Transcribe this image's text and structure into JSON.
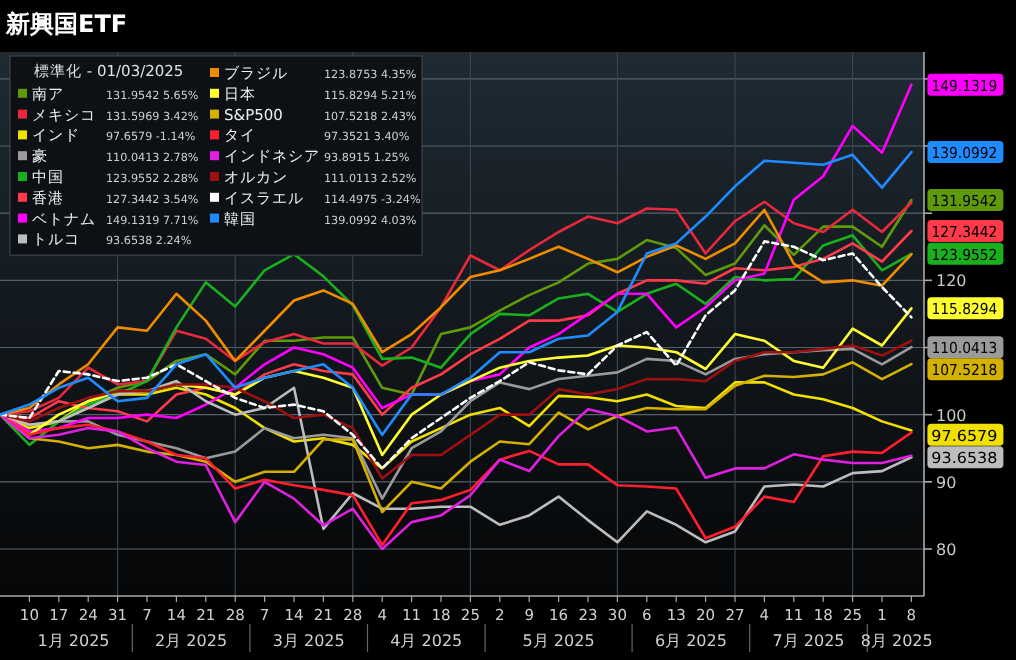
{
  "chart_data": {
    "type": "line",
    "title": "新興国ETF",
    "legend_title": "標準化 - 01/03/2025",
    "legend": "top left",
    "grid": true,
    "x": [
      "2025-01-03",
      "2025-01-10",
      "2025-01-17",
      "2025-01-24",
      "2025-01-31",
      "2025-02-07",
      "2025-02-14",
      "2025-02-21",
      "2025-02-28",
      "2025-03-07",
      "2025-03-14",
      "2025-03-21",
      "2025-03-28",
      "2025-04-04",
      "2025-04-11",
      "2025-04-18",
      "2025-04-25",
      "2025-05-02",
      "2025-05-09",
      "2025-05-16",
      "2025-05-23",
      "2025-05-30",
      "2025-06-06",
      "2025-06-13",
      "2025-06-20",
      "2025-06-27",
      "2025-07-04",
      "2025-07-11",
      "2025-07-18",
      "2025-07-25",
      "2025-08-01",
      "2025-08-08"
    ],
    "xlim": [
      "2025-01-03",
      "2025-08-11"
    ],
    "xticks": [
      {
        "value": "2025-01-10",
        "label": "10"
      },
      {
        "value": "2025-01-17",
        "label": "17"
      },
      {
        "value": "2025-01-24",
        "label": "24"
      },
      {
        "value": "2025-01-31",
        "label": "31"
      },
      {
        "value": "2025-02-07",
        "label": "7"
      },
      {
        "value": "2025-02-14",
        "label": "14"
      },
      {
        "value": "2025-02-21",
        "label": "21"
      },
      {
        "value": "2025-02-28",
        "label": "28"
      },
      {
        "value": "2025-03-07",
        "label": "7"
      },
      {
        "value": "2025-03-14",
        "label": "14"
      },
      {
        "value": "2025-03-21",
        "label": "21"
      },
      {
        "value": "2025-03-28",
        "label": "28"
      },
      {
        "value": "2025-04-04",
        "label": "4"
      },
      {
        "value": "2025-04-11",
        "label": "11"
      },
      {
        "value": "2025-04-18",
        "label": "18"
      },
      {
        "value": "2025-04-25",
        "label": "25"
      },
      {
        "value": "2025-05-02",
        "label": "2"
      },
      {
        "value": "2025-05-09",
        "label": "9"
      },
      {
        "value": "2025-05-16",
        "label": "16"
      },
      {
        "value": "2025-05-23",
        "label": "23"
      },
      {
        "value": "2025-05-30",
        "label": "30"
      },
      {
        "value": "2025-06-06",
        "label": "6"
      },
      {
        "value": "2025-06-13",
        "label": "13"
      },
      {
        "value": "2025-06-20",
        "label": "20"
      },
      {
        "value": "2025-06-27",
        "label": "27"
      },
      {
        "value": "2025-07-04",
        "label": "4"
      },
      {
        "value": "2025-07-11",
        "label": "11"
      },
      {
        "value": "2025-07-18",
        "label": "18"
      },
      {
        "value": "2025-07-25",
        "label": "25"
      },
      {
        "value": "2025-08-01",
        "label": "1"
      },
      {
        "value": "2025-08-08",
        "label": "8"
      }
    ],
    "ylim": [
      73,
      154
    ],
    "yticks": [
      80,
      90,
      100,
      {
        "value": 110,
        "label": null
      },
      120,
      {
        "value": 130,
        "label": null
      },
      {
        "value": 140,
        "label": null
      },
      {
        "value": 150,
        "label": null
      }
    ],
    "series": [
      {
        "name": "南ア",
        "color": "#5f9a0a",
        "values": [
          100,
          98,
          99,
          102,
          104,
          105,
          108,
          109,
          106,
          111,
          111,
          111.5,
          111.5,
          104,
          103,
          112,
          113,
          115.5,
          117.8,
          119.7,
          122.5,
          123.2,
          126,
          124.8,
          120.8,
          122.5,
          128.2,
          123.8,
          128,
          128,
          125,
          131.9542
        ]
      },
      {
        "name": "メキシコ",
        "color": "#e8283c",
        "values": [
          100,
          100.5,
          102.5,
          107,
          104.5,
          105,
          112.5,
          111.3,
          108,
          110.8,
          112,
          110.6,
          110.6,
          107.3,
          110,
          116,
          123.7,
          121.5,
          124.5,
          127.2,
          129.5,
          128.5,
          130.7,
          130.5,
          124,
          128.8,
          131.7,
          128.5,
          127.2,
          130.5,
          127.2,
          131.5969
        ]
      },
      {
        "name": "インド",
        "color": "#f0e000",
        "values": [
          100,
          98,
          99,
          102,
          103,
          103,
          104,
          103,
          101,
          98,
          96,
          96.5,
          95.5,
          92,
          96,
          98,
          100,
          101,
          98.3,
          102.8,
          102.6,
          102,
          103,
          101.3,
          101,
          104.8,
          104.8,
          103,
          102.3,
          101,
          99,
          97.6579
        ]
      },
      {
        "name": "豪",
        "color": "#9a9a9a",
        "values": [
          100,
          98.5,
          99,
          99,
          97,
          96,
          95,
          93.5,
          94.5,
          98,
          96.5,
          97,
          96.5,
          87.5,
          95,
          97.5,
          102,
          104.8,
          103.8,
          105.3,
          105.8,
          106.3,
          108.3,
          108,
          106,
          108.3,
          109,
          109.3,
          109.6,
          109.8,
          107.5,
          110.0413
        ]
      },
      {
        "name": "中国",
        "color": "#19b01e",
        "values": [
          100,
          95.5,
          99,
          101.5,
          103,
          105,
          113,
          119.7,
          116.1,
          121.5,
          123.9,
          120.6,
          116.3,
          108.3,
          108.5,
          107,
          112,
          115,
          114.8,
          117.3,
          118,
          115.3,
          118,
          119.5,
          116.5,
          120.5,
          120,
          120.2,
          125.2,
          126.7,
          121.5,
          123.9552
        ]
      },
      {
        "name": "香港",
        "color": "#ff3a4a",
        "values": [
          100,
          99.5,
          102,
          101,
          100.5,
          99,
          103,
          104,
          103,
          106,
          107.5,
          106.5,
          106,
          100,
          104,
          106,
          109,
          111.3,
          114,
          114,
          114.8,
          118,
          120,
          120,
          119.5,
          121.8,
          121.5,
          122,
          123.2,
          125.5,
          122.8,
          127.3442
        ]
      },
      {
        "name": "ベトナム",
        "color": "#ff00ff",
        "values": [
          100,
          97.5,
          98,
          99.5,
          99.5,
          100,
          99.5,
          101.5,
          104,
          107.5,
          110,
          109,
          107,
          101,
          103,
          103,
          105,
          106,
          110,
          112,
          115,
          118,
          118,
          113,
          116,
          120,
          121,
          132,
          135.5,
          143,
          139,
          149.1319
        ]
      },
      {
        "name": "トルコ",
        "color": "#bdbdbd",
        "values": [
          100,
          98.5,
          99,
          101,
          103,
          103.5,
          105,
          102,
          100,
          101,
          104,
          83,
          88.3,
          86,
          86,
          86.3,
          86.3,
          83.6,
          85,
          87.8,
          84.3,
          81,
          85.6,
          83.6,
          81,
          82.6,
          89.3,
          89.6,
          89.3,
          91.3,
          91.6,
          93.6538
        ]
      },
      {
        "name": "ブラジル",
        "color": "#f08c00",
        "values": [
          100,
          101,
          104.5,
          107.5,
          113,
          112.5,
          118,
          114,
          108,
          112.5,
          117,
          118.5,
          116.5,
          109.3,
          112,
          116,
          120.5,
          121.5,
          123.2,
          125,
          123.2,
          121.2,
          123.5,
          125.2,
          123.2,
          125.5,
          130.5,
          122.5,
          119.7,
          120,
          119.2,
          123.8753
        ]
      },
      {
        "name": "日本",
        "color": "#ffff30",
        "values": [
          100,
          97,
          100,
          102,
          103.5,
          103.5,
          104.5,
          104,
          103,
          105.5,
          106.5,
          105.5,
          104,
          94,
          100,
          103,
          105,
          107,
          108,
          108.5,
          108.8,
          110.3,
          110,
          109.3,
          106.8,
          112,
          111,
          108,
          107,
          112.8,
          110.3,
          115.8294
        ]
      },
      {
        "name": "S&P500",
        "color": "#d4b000",
        "values": [
          100,
          96.5,
          96,
          95,
          95.5,
          94.5,
          94,
          93,
          90,
          91.5,
          91.5,
          96.3,
          96.3,
          85.5,
          90,
          89,
          93,
          96,
          95.6,
          100.3,
          97.8,
          99.8,
          101,
          100.8,
          100.8,
          104.3,
          105.8,
          105.6,
          106,
          107.8,
          105.3,
          107.5218
        ]
      },
      {
        "name": "タイ",
        "color": "#ff1f2f",
        "values": [
          100,
          97,
          98,
          98.5,
          97.5,
          96,
          94,
          93.5,
          89,
          90.3,
          89.5,
          88.8,
          88,
          80.6,
          86.8,
          87.3,
          88.8,
          93.3,
          94.6,
          92.6,
          92.6,
          89.5,
          89.3,
          89,
          81.6,
          83.3,
          87.8,
          87,
          93.8,
          94.5,
          94.3,
          97.3521
        ]
      },
      {
        "name": "インドネシア",
        "color": "#e020e0",
        "values": [
          100,
          96.5,
          97,
          98,
          97.5,
          95,
          93,
          92.5,
          84,
          90,
          87.5,
          83.5,
          86,
          80,
          84,
          85,
          88,
          93.3,
          91.6,
          96.8,
          100.8,
          99.8,
          97.5,
          98.1,
          90.6,
          92,
          92,
          94.1,
          93.3,
          92.8,
          92.8,
          93.8915
        ]
      },
      {
        "name": "オルカン",
        "color": "#9c1010",
        "values": [
          100,
          99,
          101,
          102.5,
          103.5,
          103.5,
          104.5,
          104.5,
          104,
          102,
          99.5,
          100,
          98,
          90.5,
          94,
          94,
          97,
          100,
          100,
          103.8,
          103,
          103.8,
          105.3,
          105.3,
          105,
          108,
          109.3,
          109.3,
          109.8,
          110.3,
          108.8,
          111.0113
        ]
      },
      {
        "name": "イスラエル",
        "color": "#ffffff",
        "line_style": "dashed",
        "values": [
          100,
          99.5,
          106.5,
          106,
          105,
          105.5,
          107.5,
          105,
          102.5,
          101,
          101.5,
          100.5,
          97,
          92,
          96.5,
          99.5,
          102.5,
          105,
          107.8,
          106.6,
          106,
          110.3,
          112.3,
          107.3,
          114.8,
          118.5,
          125.8,
          125,
          123,
          124,
          119,
          114.4975
        ]
      },
      {
        "name": "韓国",
        "color": "#1e8cff",
        "values": [
          100,
          101.5,
          104,
          105.5,
          102,
          102.5,
          107.5,
          109,
          104,
          105.5,
          106.5,
          107.5,
          104,
          97,
          103,
          103,
          105.5,
          109.3,
          109.3,
          111.3,
          111.8,
          115.3,
          124,
          125.5,
          129.5,
          134,
          137.8,
          137.5,
          137.2,
          138.7,
          133.8,
          139.0992
        ]
      }
    ],
    "annotations": [
      "131.9542 5.65%",
      "131.5969 3.42%",
      "97.6579 -1.14%",
      "110.0413 2.78%",
      "123.9552 2.28%",
      "127.3442 3.54%",
      "149.1319 7.71%",
      "93.6538 2.24%",
      "123.8753 4.35%",
      "115.8294 5.21%",
      "107.5218 2.43%",
      "97.3521 3.40%",
      "93.8915 1.25%",
      "111.0113 2.52%",
      "114.4975 -3.24%",
      "139.0992 4.03%",
      {
        "text": "149.1319",
        "x": "2025-08-08",
        "y": 149.1319
      },
      {
        "text": "139.0992",
        "x": "2025-08-08",
        "y": 139.0992
      },
      {
        "text": "131.9542",
        "x": "2025-08-08",
        "y": 131.9542
      },
      {
        "text": "127.3442",
        "x": "2025-08-08",
        "y": 127.3442
      },
      {
        "text": "123.9552",
        "x": "2025-08-08",
        "y": 123.9552
      },
      {
        "text": "115.8294",
        "x": "2025-08-08",
        "y": 115.8294
      },
      {
        "text": "110.0413",
        "x": "2025-08-08",
        "y": 110.0413
      },
      {
        "text": "107.5218",
        "x": "2025-08-08",
        "y": 107.5218
      },
      {
        "text": "97.6579",
        "x": "2025-08-08",
        "y": 97.6579
      },
      {
        "text": "93.6538",
        "x": "2025-08-08",
        "y": 93.6538
      },
      "1月 2025",
      "2月 2025",
      "3月 2025",
      "4月 2025",
      "5月 2025",
      "6月 2025",
      "7月 2025",
      "8月 2025"
    ]
  }
}
